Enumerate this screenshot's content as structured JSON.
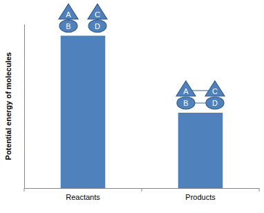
{
  "chart_data": {
    "type": "bar",
    "categories": [
      "Reactants",
      "Products"
    ],
    "values": [
      93,
      46
    ],
    "color": "#4f81bd",
    "ylim": [
      0,
      100
    ],
    "yticks": [],
    "y_label": "Potential energy of molecules",
    "tick_labels": "x",
    "annotations": [
      [
        [
          "A",
          "B"
        ],
        [
          "C",
          "D"
        ]
      ],
      [
        [
          "A",
          "C"
        ],
        [
          "B",
          "D"
        ]
      ]
    ]
  }
}
